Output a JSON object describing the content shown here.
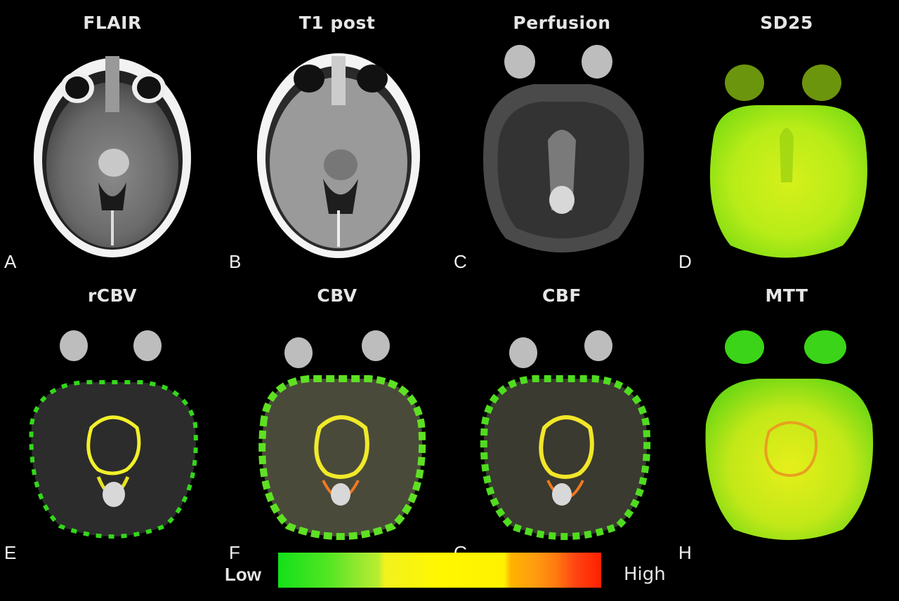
{
  "panels": [
    {
      "title": "FLAIR",
      "letter": "A",
      "style": "flair"
    },
    {
      "title": "T1 post",
      "letter": "B",
      "style": "t1"
    },
    {
      "title": "Perfusion",
      "letter": "C",
      "style": "perfusion"
    },
    {
      "title": "SD25",
      "letter": "D",
      "style": "color-green"
    },
    {
      "title": "rCBV",
      "letter": "E",
      "style": "color-sparse"
    },
    {
      "title": "CBV",
      "letter": "F",
      "style": "color-medium"
    },
    {
      "title": "CBF",
      "letter": "G",
      "style": "color-medium"
    },
    {
      "title": "MTT",
      "letter": "H",
      "style": "color-yellow"
    }
  ],
  "colorbar": {
    "low_label": "Low",
    "high_label": "High"
  }
}
